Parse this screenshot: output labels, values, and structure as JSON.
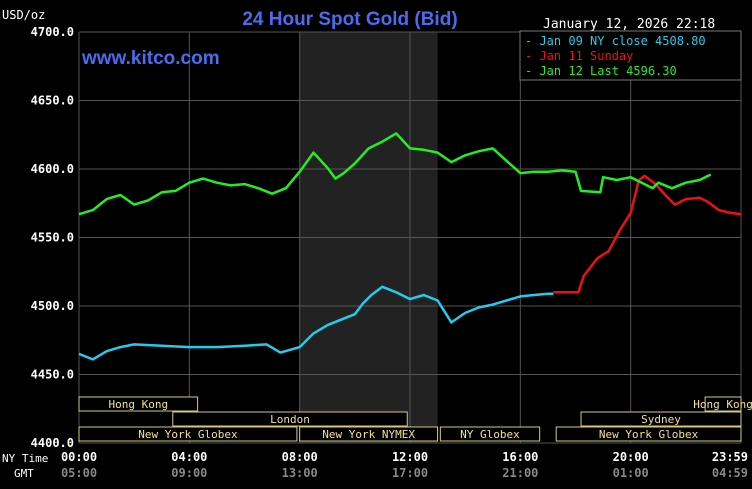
{
  "chart_data": {
    "type": "line",
    "title": "24 Hour Spot Gold (Bid)",
    "unit_label": "USD/oz",
    "watermark": "www.kitco.com",
    "timestamp": "January 12, 2026 22:18",
    "ylim": [
      4400,
      4700
    ],
    "y_ticks": [
      "4700.0",
      "4650.0",
      "4600.0",
      "4550.0",
      "4500.0",
      "4450.0",
      "4400.0"
    ],
    "x_tick_labels_ny": [
      "00:00",
      "04:00",
      "08:00",
      "12:00",
      "16:00",
      "20:00",
      "23:59"
    ],
    "x_tick_labels_gmt": [
      "05:00",
      "09:00",
      "13:00",
      "17:00",
      "21:00",
      "01:00",
      "04:59"
    ],
    "x_axis_row_labels": [
      "NY Time",
      "GMT"
    ],
    "shaded_hours": [
      8,
      13
    ],
    "legend": [
      {
        "label": "Jan 09 NY close 4508.80",
        "color": "#22ccee"
      },
      {
        "label": "Jan 11 Sunday",
        "color": "#ee1111"
      },
      {
        "label": "Jan 12 Last 4596.30",
        "color": "#22ee22"
      }
    ],
    "series": [
      {
        "name": "Jan 09 NY close 4508.80",
        "color": "#22ccee",
        "points": [
          [
            0,
            4465
          ],
          [
            0.5,
            4461
          ],
          [
            1,
            4467
          ],
          [
            1.5,
            4470
          ],
          [
            2,
            4472
          ],
          [
            3,
            4471
          ],
          [
            4,
            4470
          ],
          [
            5,
            4470
          ],
          [
            6,
            4471
          ],
          [
            6.8,
            4472
          ],
          [
            7.3,
            4466
          ],
          [
            8,
            4470
          ],
          [
            8.5,
            4480
          ],
          [
            9,
            4486
          ],
          [
            9.5,
            4490
          ],
          [
            10,
            4494
          ],
          [
            10.3,
            4502
          ],
          [
            10.6,
            4508
          ],
          [
            11,
            4514
          ],
          [
            11.5,
            4510
          ],
          [
            12,
            4505
          ],
          [
            12.5,
            4508
          ],
          [
            13,
            4504
          ],
          [
            13.5,
            4488
          ],
          [
            14,
            4495
          ],
          [
            14.5,
            4499
          ],
          [
            15,
            4501
          ],
          [
            15.5,
            4504
          ],
          [
            16,
            4507
          ],
          [
            16.5,
            4508
          ],
          [
            17,
            4509
          ],
          [
            17.2,
            4509
          ]
        ]
      },
      {
        "name": "Jan 11 Sunday",
        "color": "#ee1111",
        "points": [
          [
            17.2,
            4510
          ],
          [
            18.1,
            4510
          ],
          [
            18.3,
            4522
          ],
          [
            18.8,
            4535
          ],
          [
            19.2,
            4540
          ],
          [
            19.6,
            4555
          ],
          [
            20,
            4568
          ],
          [
            20.3,
            4592
          ],
          [
            20.5,
            4595
          ],
          [
            20.9,
            4589
          ],
          [
            21.3,
            4580
          ],
          [
            21.6,
            4574
          ],
          [
            22,
            4578
          ],
          [
            22.5,
            4579
          ],
          [
            22.8,
            4576
          ],
          [
            23.2,
            4570
          ],
          [
            23.6,
            4568
          ],
          [
            24,
            4567
          ]
        ]
      },
      {
        "name": "Jan 12 Last 4596.30",
        "color": "#22ee22",
        "points": [
          [
            0,
            4567
          ],
          [
            0.5,
            4570
          ],
          [
            1,
            4578
          ],
          [
            1.5,
            4581
          ],
          [
            2,
            4574
          ],
          [
            2.5,
            4577
          ],
          [
            3,
            4583
          ],
          [
            3.5,
            4584
          ],
          [
            4,
            4590
          ],
          [
            4.5,
            4593
          ],
          [
            5,
            4590
          ],
          [
            5.5,
            4588
          ],
          [
            6,
            4589
          ],
          [
            6.5,
            4586
          ],
          [
            7,
            4582
          ],
          [
            7.5,
            4586
          ],
          [
            8,
            4598
          ],
          [
            8.5,
            4612
          ],
          [
            9,
            4601
          ],
          [
            9.3,
            4593
          ],
          [
            9.6,
            4597
          ],
          [
            10,
            4604
          ],
          [
            10.5,
            4615
          ],
          [
            11,
            4620
          ],
          [
            11.5,
            4626
          ],
          [
            12,
            4615
          ],
          [
            12.5,
            4614
          ],
          [
            13,
            4612
          ],
          [
            13.5,
            4605
          ],
          [
            14,
            4610
          ],
          [
            14.5,
            4613
          ],
          [
            15,
            4615
          ],
          [
            15.5,
            4606
          ],
          [
            16,
            4597
          ],
          [
            16.5,
            4598
          ],
          [
            17,
            4598
          ],
          [
            17.5,
            4599
          ],
          [
            18,
            4598
          ],
          [
            18.2,
            4584
          ],
          [
            18.9,
            4583
          ],
          [
            19,
            4594
          ],
          [
            19.5,
            4592
          ],
          [
            20,
            4594
          ],
          [
            20.4,
            4590
          ],
          [
            20.8,
            4586
          ],
          [
            21,
            4590
          ],
          [
            21.5,
            4586
          ],
          [
            22,
            4590
          ],
          [
            22.5,
            4592
          ],
          [
            22.9,
            4596
          ]
        ]
      }
    ],
    "market_sessions": [
      {
        "label": "Hong Kong",
        "row": 0,
        "start": 0,
        "end": 4.3
      },
      {
        "label": "Hong Kong",
        "row": 0,
        "start": 22.7,
        "end": 24
      },
      {
        "label": "London",
        "row": 1,
        "start": 3.4,
        "end": 11.9
      },
      {
        "label": "Sydney",
        "row": 1,
        "start": 18.2,
        "end": 24
      },
      {
        "label": "New York Globex",
        "row": 2,
        "start": 0,
        "end": 7.9
      },
      {
        "label": "New York NYMEX",
        "row": 2,
        "start": 8,
        "end": 13
      },
      {
        "label": "NY Globex",
        "row": 2,
        "start": 13.1,
        "end": 16.7
      },
      {
        "label": "New York Globex",
        "row": 2,
        "start": 17.3,
        "end": 24
      }
    ]
  }
}
